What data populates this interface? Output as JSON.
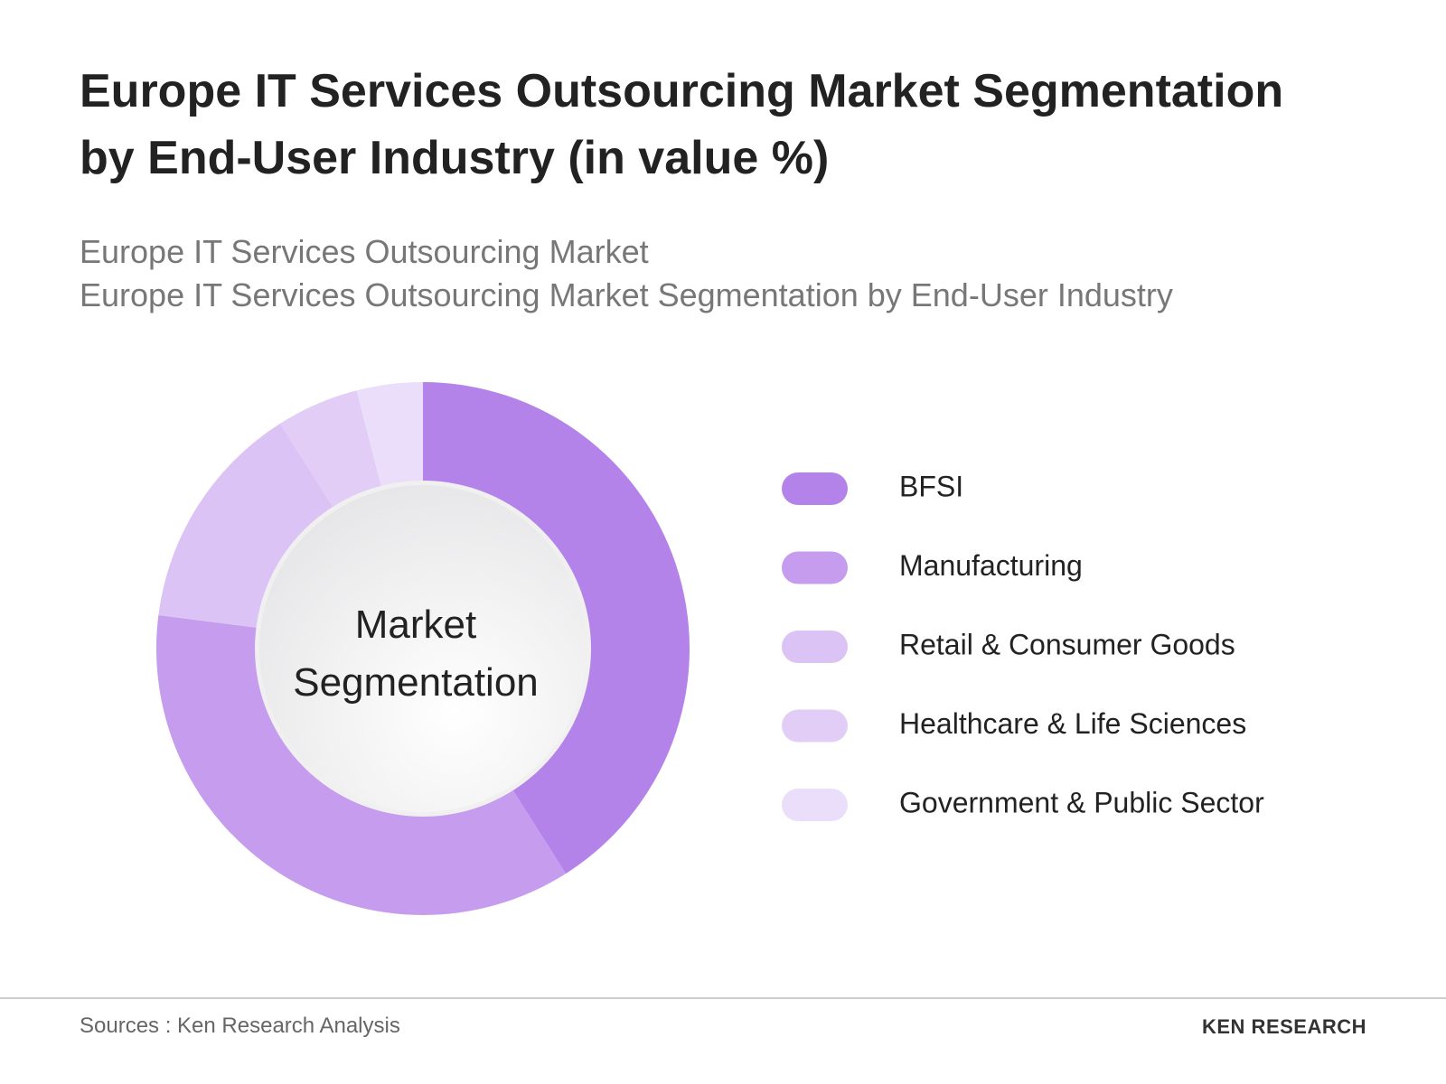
{
  "chart_data": {
    "type": "donut",
    "title": "Europe IT Services Outsourcing Market Segmentation by End-User Industry (in value %)",
    "subtitle": [
      "Europe IT Services Outsourcing Market",
      "Europe IT Services Outsourcing Market Segmentation by End-User Industry"
    ],
    "center_label": "Market Segmentation",
    "categories": [
      "BFSI",
      "Manufacturing",
      "Retail & Consumer Goods",
      "Healthcare & Life Sciences",
      "Government & Public Sector"
    ],
    "values": [
      41,
      36,
      14,
      5,
      4
    ],
    "colors": [
      "#b383ea",
      "#c59cee",
      "#dcc3f5",
      "#e2cdf7",
      "#ebdefa"
    ]
  },
  "footer": {
    "source": "Sources : Ken Research Analysis",
    "brand": "KEN RESEARCH"
  }
}
